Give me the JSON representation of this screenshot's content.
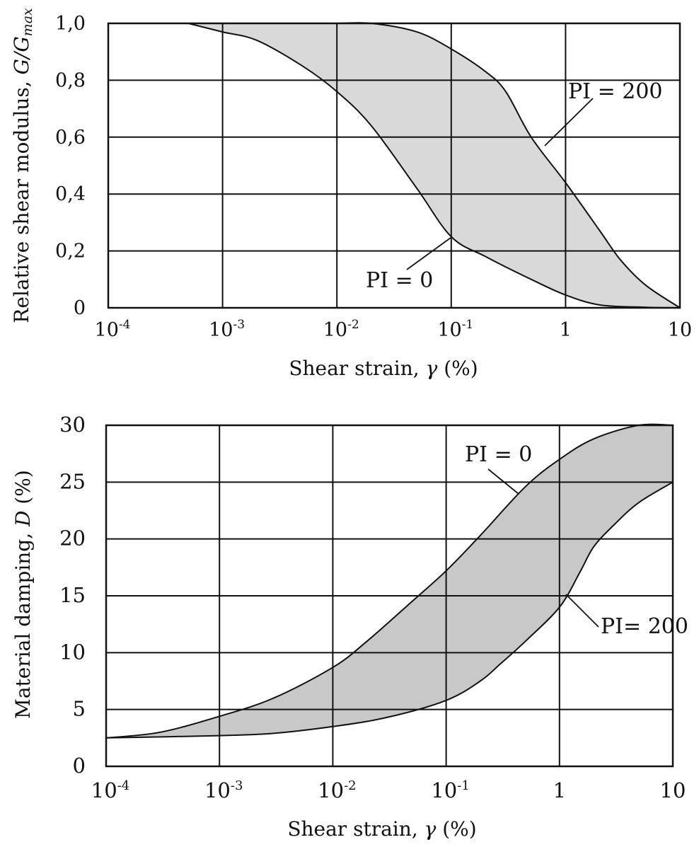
{
  "chart_data": [
    {
      "type": "area",
      "xlabel": "Shear strain, γ (%)",
      "ylabel": "Relative shear modulus, G/Gmax",
      "ylabel_parts": {
        "main": "Relative shear modulus, ",
        "var": "G/G",
        "sub": "max"
      },
      "xlabel_parts": {
        "main": "Shear strain, ",
        "var": "γ",
        "unit": " (%)"
      },
      "x_scale": "log",
      "xlim": [
        0.0001,
        10
      ],
      "ylim": [
        0,
        1.0
      ],
      "x_ticks": [
        {
          "base": "10",
          "exp": "-4"
        },
        {
          "base": "10",
          "exp": "-3"
        },
        {
          "base": "10",
          "exp": "-2"
        },
        {
          "base": "10",
          "exp": "-1"
        },
        {
          "base": "1",
          "exp": ""
        },
        {
          "base": "10",
          "exp": ""
        }
      ],
      "y_ticks": [
        {
          "v": 0,
          "label": "0"
        },
        {
          "v": 0.2,
          "label": "0,2"
        },
        {
          "v": 0.4,
          "label": "0,4"
        },
        {
          "v": 0.6,
          "label": "0,6"
        },
        {
          "v": 0.8,
          "label": "0,8"
        },
        {
          "v": 1.0,
          "label": "1,0"
        }
      ],
      "grid": true,
      "fill_color": "#d9d9d9",
      "series": [
        {
          "name": "PI = 0",
          "label": "PI = 0",
          "x": [
            0.0005,
            0.001,
            0.002,
            0.005,
            0.01,
            0.02,
            0.05,
            0.1,
            0.2,
            0.5,
            1,
            2,
            5,
            10
          ],
          "y": [
            1.0,
            0.97,
            0.94,
            0.85,
            0.76,
            0.64,
            0.42,
            0.25,
            0.18,
            0.1,
            0.045,
            0.01,
            0.002,
            0.0
          ]
        },
        {
          "name": "PI = 200",
          "label": "PI = 200",
          "x": [
            0.0005,
            0.001,
            0.005,
            0.01,
            0.02,
            0.05,
            0.1,
            0.2,
            0.3,
            0.5,
            1,
            2,
            3,
            5,
            10
          ],
          "y": [
            1.0,
            1.0,
            1.0,
            1.0,
            1.0,
            0.97,
            0.91,
            0.83,
            0.76,
            0.6,
            0.44,
            0.27,
            0.17,
            0.08,
            0.0
          ]
        }
      ]
    },
    {
      "type": "area",
      "xlabel": "Shear strain, γ (%)",
      "ylabel": "Material damping, D (%)",
      "ylabel_parts": {
        "main": "Material damping, ",
        "var": "D",
        "unit": " (%)"
      },
      "xlabel_parts": {
        "main": "Shear strain, ",
        "var": "γ",
        "unit": " (%)"
      },
      "x_scale": "log",
      "xlim": [
        0.0001,
        10
      ],
      "ylim": [
        0,
        30
      ],
      "x_ticks": [
        {
          "base": "10",
          "exp": "-4"
        },
        {
          "base": "10",
          "exp": "-3"
        },
        {
          "base": "10",
          "exp": "-2"
        },
        {
          "base": "10",
          "exp": "-1"
        },
        {
          "base": "1",
          "exp": ""
        },
        {
          "base": "10",
          "exp": ""
        }
      ],
      "y_ticks": [
        {
          "v": 0,
          "label": "0"
        },
        {
          "v": 5,
          "label": "5"
        },
        {
          "v": 10,
          "label": "10"
        },
        {
          "v": 15,
          "label": "15"
        },
        {
          "v": 20,
          "label": "20"
        },
        {
          "v": 25,
          "label": "25"
        },
        {
          "v": 30,
          "label": "30"
        }
      ],
      "grid": true,
      "fill_color": "#c8c8c8",
      "series": [
        {
          "name": "PI = 0",
          "label": "PI = 0",
          "x": [
            0.0001,
            0.0003,
            0.001,
            0.003,
            0.01,
            0.02,
            0.05,
            0.1,
            0.2,
            0.5,
            1,
            2,
            5,
            10
          ],
          "y": [
            2.5,
            3.0,
            4.4,
            6.0,
            8.7,
            11.0,
            14.5,
            17.2,
            20.3,
            24.6,
            27.0,
            28.8,
            30.0,
            30.0
          ]
        },
        {
          "name": "PI= 200",
          "label": "PI= 200",
          "x": [
            0.0001,
            0.001,
            0.003,
            0.01,
            0.03,
            0.1,
            0.2,
            0.3,
            0.5,
            1,
            1.5,
            2,
            3,
            5,
            10
          ],
          "y": [
            2.5,
            2.7,
            2.9,
            3.5,
            4.3,
            5.8,
            7.5,
            9.0,
            11.0,
            14.0,
            17.0,
            19.3,
            21.2,
            23.2,
            25.0
          ]
        }
      ]
    }
  ]
}
